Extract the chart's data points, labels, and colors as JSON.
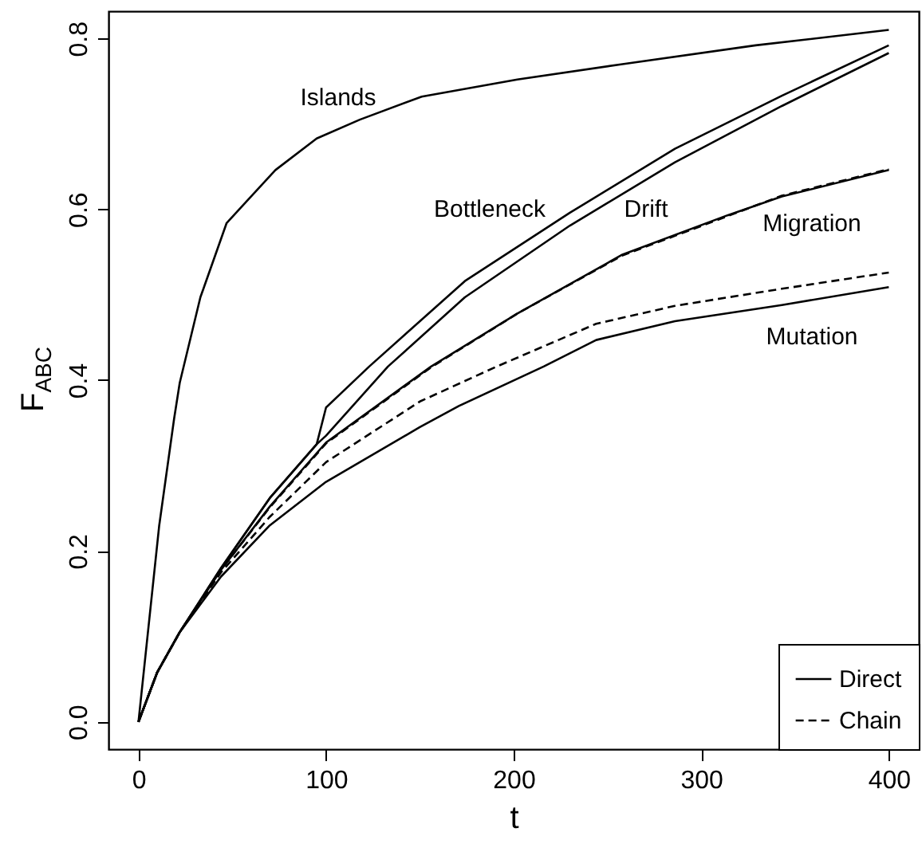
{
  "chart_data": {
    "type": "line",
    "xlabel": "t",
    "ylabel": "F$_{ABC}$",
    "xlim": [
      -16,
      416
    ],
    "xticks": [
      0,
      100,
      200,
      300,
      400
    ],
    "ylim": [
      -0.032,
      0.832
    ],
    "yticks": [
      {
        "value": 0,
        "label": "0.0"
      },
      0.2,
      0.4,
      0.6,
      0.8
    ],
    "grid": false,
    "legend": "bottom right",
    "marker": "none",
    "annotations": [
      "Islands",
      "Bottleneck",
      "Drift",
      "Migration",
      "Mutation"
    ],
    "series": [
      {
        "name": "Direct",
        "color": "#000000",
        "line_style": "solid",
        "x": [
          0,
          11,
          19,
          22,
          33,
          47,
          73,
          95,
          118,
          151,
          202,
          258,
          329,
          400
        ],
        "values": [
          0,
          0.229,
          0.355,
          0.397,
          0.497,
          0.584,
          0.646,
          0.683,
          0.705,
          0.732,
          0.752,
          0.77,
          0.792,
          0.81
        ]
      },
      {
        "color": "#000000",
        "line_style": "solid",
        "x": [
          0,
          10,
          22,
          44,
          70,
          95,
          100,
          123,
          174,
          230,
          286,
          343,
          400
        ],
        "values": [
          0,
          0.058,
          0.105,
          0.18,
          0.262,
          0.325,
          0.368,
          0.416,
          0.516,
          0.596,
          0.671,
          0.733,
          0.792
        ]
      },
      {
        "color": "#000000",
        "line_style": "solid",
        "x": [
          0,
          10,
          22,
          44,
          70,
          95,
          100,
          133,
          174,
          230,
          286,
          343,
          400
        ],
        "values": [
          0,
          0.058,
          0.105,
          0.18,
          0.262,
          0.325,
          0.335,
          0.416,
          0.497,
          0.581,
          0.655,
          0.721,
          0.783
        ]
      },
      {
        "color": "#000000",
        "line_style": "solid",
        "x": [
          0,
          10,
          22,
          44,
          70,
          100,
          156,
          202,
          258,
          314,
          343,
          400
        ],
        "values": [
          0,
          0.058,
          0.105,
          0.178,
          0.252,
          0.327,
          0.416,
          0.478,
          0.547,
          0.593,
          0.615,
          0.646
        ]
      },
      {
        "name": "Chain",
        "color": "#000000",
        "line_style": "dashed",
        "x": [
          0,
          10,
          22,
          44,
          70,
          100,
          156,
          202,
          258,
          314,
          343,
          400
        ],
        "values": [
          0,
          0.058,
          0.105,
          0.178,
          0.251,
          0.326,
          0.415,
          0.478,
          0.546,
          0.592,
          0.616,
          0.647
        ]
      },
      {
        "color": "#000000",
        "line_style": "solid",
        "x": [
          0,
          10,
          22,
          44,
          70,
          100,
          150,
          171,
          216,
          244,
          286,
          343,
          400
        ],
        "values": [
          0,
          0.058,
          0.105,
          0.17,
          0.23,
          0.281,
          0.345,
          0.37,
          0.416,
          0.447,
          0.469,
          0.488,
          0.509
        ]
      },
      {
        "color": "#000000",
        "line_style": "dashed",
        "x": [
          0,
          10,
          22,
          44,
          70,
          100,
          150,
          191,
          244,
          286,
          343,
          400
        ],
        "values": [
          0,
          0.058,
          0.105,
          0.175,
          0.24,
          0.304,
          0.375,
          0.416,
          0.466,
          0.487,
          0.507,
          0.526
        ]
      }
    ]
  }
}
